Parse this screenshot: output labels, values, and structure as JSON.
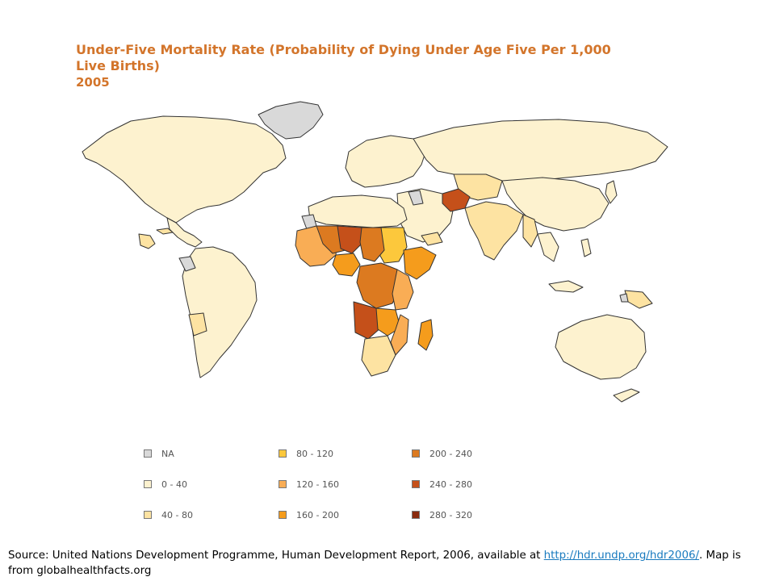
{
  "title": {
    "line1": "Under-Five Mortality Rate (Probability of Dying Under Age Five Per 1,000",
    "line2": "Live Births)",
    "line3": "2005"
  },
  "colors": {
    "title": "#d3752b",
    "na": "#d9d9d9",
    "c0_40": "#fdf2cf",
    "c40_80": "#fde3a2",
    "c80_120": "#fcc83c",
    "c120_160": "#f9ad55",
    "c160_200": "#f59c1c",
    "c200_240": "#dc7a20",
    "c240_280": "#c5501a",
    "c280_320": "#8a2b0e",
    "ocean": "#ffffff",
    "border": "#333333"
  },
  "legend": [
    {
      "label": "NA",
      "color": "#d9d9d9"
    },
    {
      "label": "0 - 40",
      "color": "#fdf2cf"
    },
    {
      "label": "40 - 80",
      "color": "#fde3a2"
    },
    {
      "label": "80 - 120",
      "color": "#fcc83c"
    },
    {
      "label": "120 - 160",
      "color": "#f9ad55"
    },
    {
      "label": "160 - 200",
      "color": "#f59c1c"
    },
    {
      "label": "200 - 240",
      "color": "#dc7a20"
    },
    {
      "label": "240 - 280",
      "color": "#c5501a"
    },
    {
      "label": "280 - 320",
      "color": "#8a2b0e"
    }
  ],
  "source": {
    "text_before": "Source: United Nations Development Programme, Human Development Report, 2006, available at ",
    "link": "http://hdr.undp.org/hdr2006/",
    "text_after": ".  Map is from globalhealthfacts.org"
  }
}
